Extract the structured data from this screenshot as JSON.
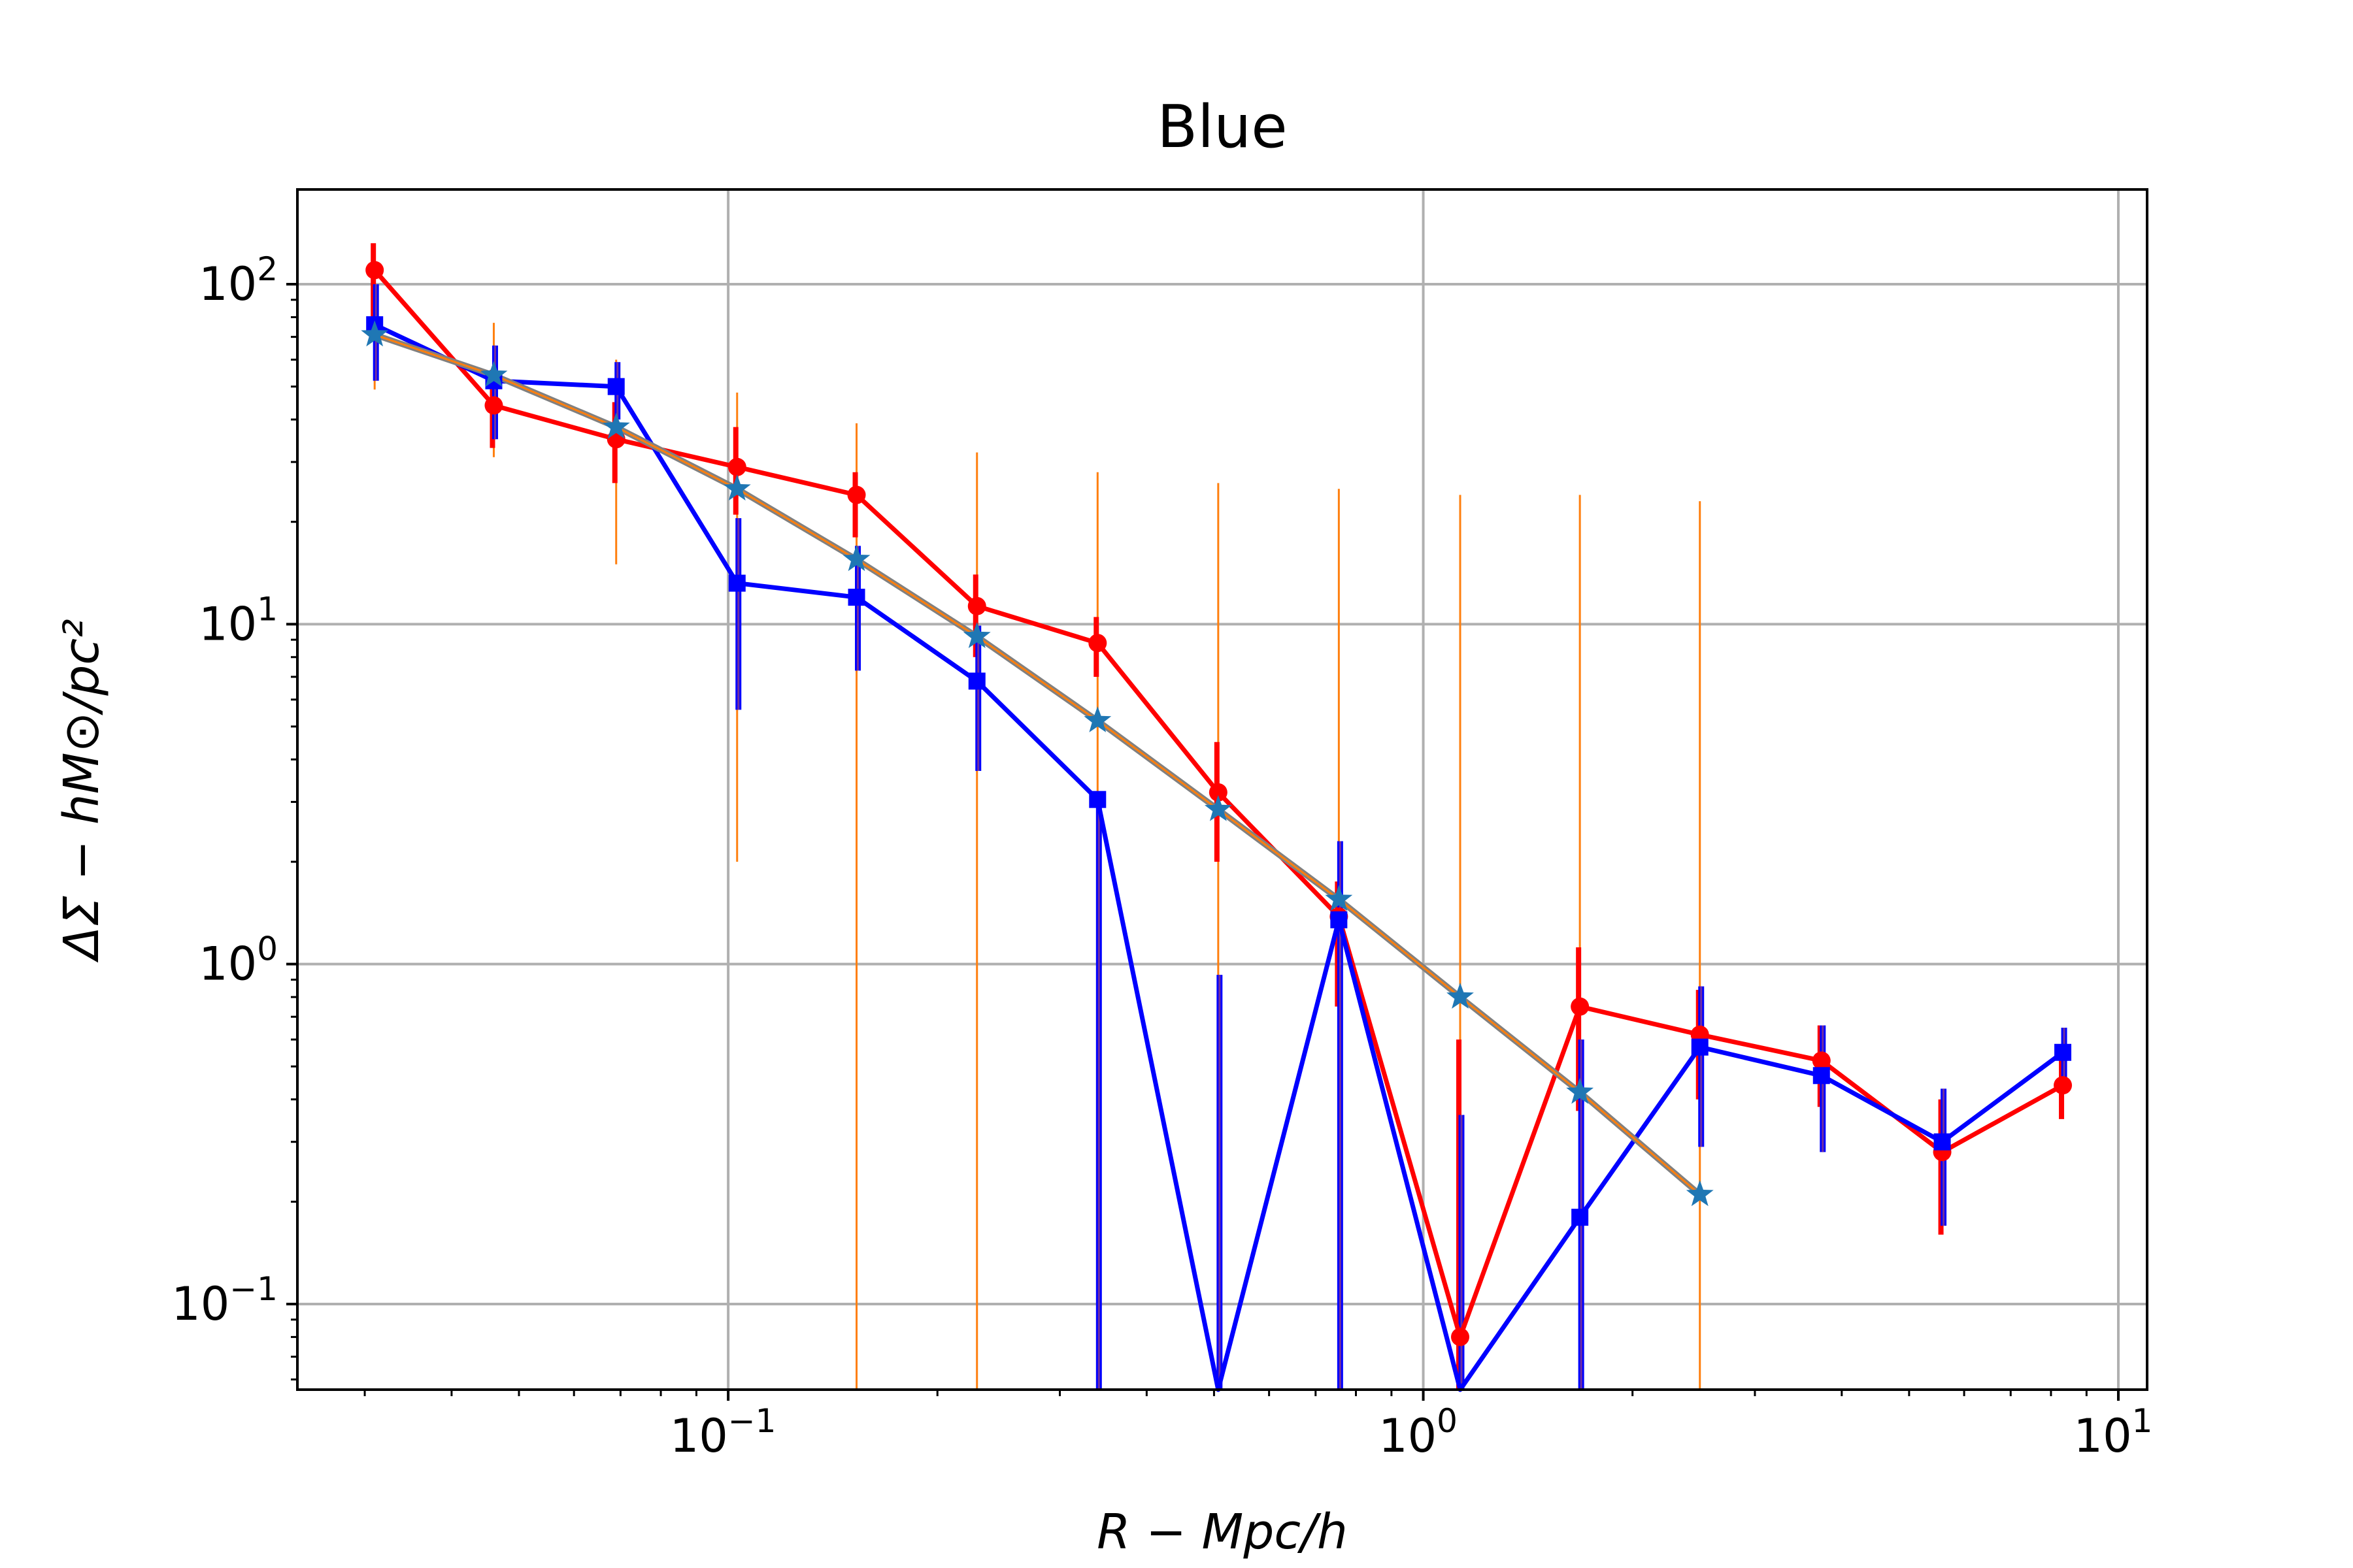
{
  "chart_data": {
    "type": "line",
    "title": "Blue",
    "xlabel": "R − Mpc/h",
    "ylabel": "ΔΣ − hM⊙/pc²",
    "xscale": "log",
    "yscale": "log",
    "xlim": [
      0.024,
      11.0
    ],
    "ylim": [
      0.056,
      190
    ],
    "grid": true,
    "x_ticks": [
      {
        "value": 0.1,
        "base": "10",
        "exp": "−1"
      },
      {
        "value": 1,
        "base": "10",
        "exp": "0"
      },
      {
        "value": 10,
        "base": "10",
        "exp": "1"
      }
    ],
    "y_ticks": [
      {
        "value": 0.1,
        "base": "10",
        "exp": "−1"
      },
      {
        "value": 1,
        "base": "10",
        "exp": "0"
      },
      {
        "value": 10,
        "base": "10",
        "exp": "1"
      },
      {
        "value": 100,
        "base": "10",
        "exp": "2"
      }
    ],
    "series": [
      {
        "color": "#1f77b4",
        "line_color": "#808080",
        "marker": "star",
        "x": [
          0.031,
          0.046,
          0.069,
          0.103,
          0.153,
          0.228,
          0.34,
          0.507,
          0.756,
          1.13,
          1.68,
          2.5
        ],
        "y": [
          71,
          54,
          38,
          25,
          15.5,
          9.2,
          5.2,
          2.85,
          1.55,
          0.8,
          0.42,
          0.21
        ],
        "err_color": "#ff7f0e",
        "yerr_lo": [
          49,
          31,
          15,
          2,
          0.056,
          0.056,
          0.056,
          0.056,
          0.056,
          0.056,
          0.056,
          0.056
        ],
        "yerr_hi": [
          94,
          77,
          60,
          48,
          39,
          32,
          28,
          26,
          25,
          24,
          24,
          23
        ]
      },
      {
        "color": "#ff0000",
        "marker": "circle",
        "x": [
          0.031,
          0.046,
          0.069,
          0.103,
          0.153,
          0.228,
          0.34,
          0.507,
          0.756,
          1.13,
          1.68,
          2.5,
          3.74,
          5.58,
          8.32
        ],
        "y": [
          110,
          44,
          35,
          29,
          24,
          11.3,
          8.8,
          3.2,
          1.38,
          0.08,
          0.75,
          0.62,
          0.52,
          0.28,
          0.44
        ],
        "yerr_lo": [
          80,
          33,
          26,
          21,
          18,
          8,
          7,
          2,
          0.75,
          0.056,
          0.37,
          0.4,
          0.38,
          0.16,
          0.35
        ],
        "yerr_hi": [
          132,
          56,
          45,
          38,
          28,
          14,
          10.5,
          4.5,
          1.75,
          0.6,
          1.12,
          0.84,
          0.66,
          0.4,
          0.55
        ]
      },
      {
        "color": "#0000ff",
        "marker": "square",
        "x": [
          0.031,
          0.046,
          0.069,
          0.103,
          0.153,
          0.228,
          0.34,
          0.507,
          0.756,
          1.13,
          1.68,
          2.5,
          3.74,
          5.58,
          8.32
        ],
        "y": [
          76,
          52,
          50,
          13.2,
          12,
          6.8,
          3.05,
          0.056,
          1.35,
          0.056,
          0.18,
          0.57,
          0.47,
          0.3,
          0.55
        ],
        "err_inner": "#7030a0",
        "yerr_lo": [
          52,
          35,
          40,
          5.6,
          7.3,
          3.7,
          0.056,
          0.056,
          0.056,
          0.056,
          0.056,
          0.29,
          0.28,
          0.17,
          0.44
        ],
        "yerr_hi": [
          100,
          66,
          59,
          20.5,
          17,
          9.9,
          3.05,
          0.93,
          2.3,
          0.36,
          0.6,
          0.86,
          0.66,
          0.43,
          0.65
        ]
      }
    ]
  }
}
